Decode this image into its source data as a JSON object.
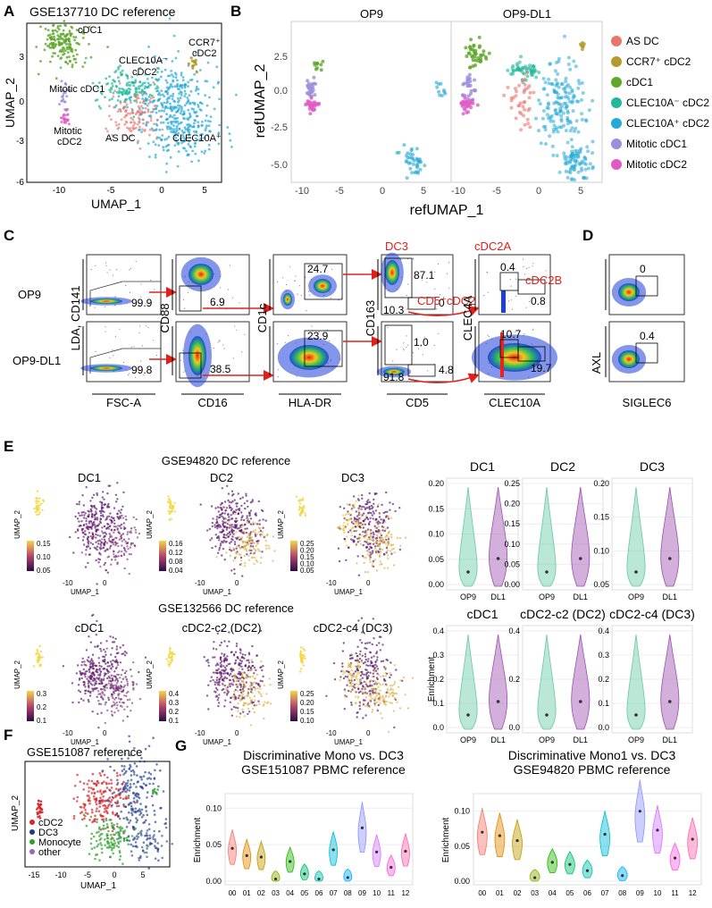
{
  "panel_letters": {
    "A": "A",
    "B": "B",
    "C": "C",
    "D": "D",
    "E": "E",
    "F": "F",
    "G": "G"
  },
  "colors": {
    "AS_DC": "#E8766F",
    "CCR7_cDC2": "#B79A2E",
    "cDC1": "#5FA82B",
    "CLEC10A_neg_cDC2": "#1FB89A",
    "CLEC10A_pos_cDC2": "#25A9D6",
    "Mitotic_cDC1": "#9C8FDB",
    "Mitotic_cDC2": "#E05CC4",
    "OP9_violin": "#66C9A3",
    "DL1_violin": "#9B4FB0",
    "flow_gate_arrow": "#E0201B",
    "F_cDC2": "#D62728",
    "F_DC3": "#1F3C88",
    "F_Monocyte": "#2CA02C",
    "F_other": "#9467BD"
  },
  "panelA": {
    "title": "GSE137710 DC reference",
    "xlabel": "UMAP_1",
    "ylabel": "UMAP_2",
    "x_ticks": [
      "-10",
      "-5",
      "0",
      "5"
    ],
    "y_ticks": [
      "3",
      "0",
      "-3",
      "-6"
    ],
    "labels": {
      "cdc1": "cDC1",
      "clec10a_neg": "CLEC10A⁻",
      "ccr7": "CCR7⁺",
      "cdc2_a": "cDC2",
      "cdc2_b": "cDC2",
      "mitotic_cdc1": "Mitotic cDC1",
      "mitotic_cdc2_1": "Mitotic",
      "mitotic_cdc2_2": "cDC2",
      "as_dc": "AS DC",
      "clec10a_pos": "CLEC10A⁺"
    }
  },
  "panelB": {
    "facets": [
      "OP9",
      "OP9-DL1"
    ],
    "xlabel": "refUMAP_1",
    "ylabel": "refUMAP_2",
    "x_ticks": [
      "-10",
      "-5",
      "0",
      "5"
    ],
    "y_ticks": [
      "2.5",
      "0.0",
      "-2.5",
      "-5.0"
    ],
    "legend": [
      "AS DC",
      "CCR7⁺ cDC2",
      "cDC1",
      "CLEC10A⁻ cDC2",
      "CLEC10A⁺ cDC2",
      "Mitotic cDC1",
      "Mitotic cDC2"
    ]
  },
  "panelC": {
    "rows": [
      "OP9",
      "OP9-DL1"
    ],
    "xlabels": [
      "FSC-A",
      "CD16",
      "HLA-DR",
      "CD5",
      "CLEC10A"
    ],
    "ylabels": [
      "LDA, CD141",
      "CD88",
      "CD1c",
      "CD163",
      "CLEC4A"
    ],
    "row1_values": {
      "live": "99.9",
      "cd16": "6.9",
      "cd1c": "24.7",
      "dc3": "87.1",
      "cd5": "0",
      "cd163lo": "10.3",
      "cdc2a": "0.4",
      "cdc2b": "0.8"
    },
    "row2_values": {
      "live": "99.8",
      "cd16": "38.5",
      "cd1c": "23.9",
      "dc3": "1.0",
      "cd5": "4.8",
      "cd163lo": "91.8",
      "cdc2a": "10.7",
      "cdc2b": "19.7"
    },
    "gate_labels": {
      "dc3": "DC3",
      "cd5": "CD5⁺cDC2",
      "cdc2a": "cDC2A",
      "cdc2b": "cDC2B"
    }
  },
  "panelD": {
    "xlabel": "SIGLEC6",
    "ylabel": "AXL",
    "values": [
      "0",
      "0.4"
    ]
  },
  "panelE": {
    "ref1": "GSE94820 DC reference",
    "ref2": "GSE132566 DC reference",
    "umap_titles_1": [
      "DC1",
      "DC2",
      "DC3"
    ],
    "umap_titles_2": [
      "cDC1",
      "cDC2-c2 (DC2)",
      "cDC2-c4 (DC3)"
    ],
    "umap_xlabel": "UMAP_1",
    "umap_ylabel": "UMAP_2",
    "umap_xticks": [
      "-10",
      "0"
    ],
    "colorbars": [
      [
        "0.15",
        "0.10",
        "0.05"
      ],
      [
        "0.16",
        "0.12",
        "0.08",
        "0.04"
      ],
      [
        "0.25",
        "0.20",
        "0.15",
        "0.10",
        "0.05"
      ],
      [
        "0.3",
        "0.2",
        "0.1"
      ],
      [
        "0.4",
        "0.3",
        "0.2",
        "0.1"
      ],
      [
        "0.25",
        "0.20",
        "0.15",
        "0.10"
      ]
    ],
    "violin_titles_1": [
      "DC1",
      "DC2",
      "DC3"
    ],
    "violin_titles_2": [
      "cDC1",
      "cDC2-c2 (DC2)",
      "cDC2-c4 (DC3)"
    ],
    "violin_groups": [
      "OP9",
      "DL1"
    ],
    "violin_ylabel": "Enrichment",
    "violin_yticks_1": [
      [
        "0.20",
        "0.15",
        "0.10",
        "0.05",
        "0.00"
      ],
      [
        "0.25",
        "0.20",
        "0.15",
        "0.10",
        "0.05",
        "0.00"
      ],
      [
        "0.20",
        "0.15",
        "0.10",
        "0.05"
      ]
    ],
    "violin_yticks_2": [
      [
        "0.4",
        "0.3",
        "0.2",
        "0.1",
        "0.0"
      ],
      [
        "0.4",
        "0.2",
        "0.0"
      ],
      [
        "0.4",
        "0.3",
        "0.2",
        "0.1",
        "0.0"
      ]
    ]
  },
  "panelF": {
    "title": "GSE151087 reference",
    "xlabel": "UMAP_1",
    "ylabel": "UMAP_2",
    "x_ticks": [
      "-15",
      "-10",
      "-5",
      "0",
      "5"
    ],
    "legend": [
      "cDC2",
      "DC3",
      "Monocyte",
      "other"
    ]
  },
  "panelG": {
    "titles": [
      [
        "Discriminative Mono vs. DC3",
        "GSE151087 PBMC reference"
      ],
      [
        "Discriminative Mono1 vs. DC3",
        "GSE94820 PBMC reference"
      ]
    ],
    "ylabel": "Enrichment",
    "yticks": [
      [
        "0.10",
        "0.05",
        "0.00"
      ],
      [
        "0.10",
        "0.05",
        "0.00"
      ]
    ],
    "clusters": [
      "00",
      "01",
      "02",
      "03",
      "04",
      "05",
      "06",
      "07",
      "08",
      "09",
      "10",
      "11",
      "12"
    ],
    "cluster_colors": [
      "#F8766D",
      "#E18A00",
      "#BE9C00",
      "#8CAB00",
      "#24B700",
      "#00BE70",
      "#00C1AB",
      "#00BBDA",
      "#00ACFC",
      "#8B93FF",
      "#D575FE",
      "#F962DD",
      "#FF65AC"
    ],
    "medians_g1": [
      0.045,
      0.035,
      0.033,
      0.003,
      0.027,
      0.01,
      0.003,
      0.043,
      0.005,
      0.073,
      0.04,
      0.019,
      0.041
    ],
    "medians_g2": [
      0.07,
      0.065,
      0.058,
      0.005,
      0.027,
      0.024,
      0.015,
      0.067,
      0.008,
      0.1,
      0.073,
      0.033,
      0.06
    ]
  }
}
